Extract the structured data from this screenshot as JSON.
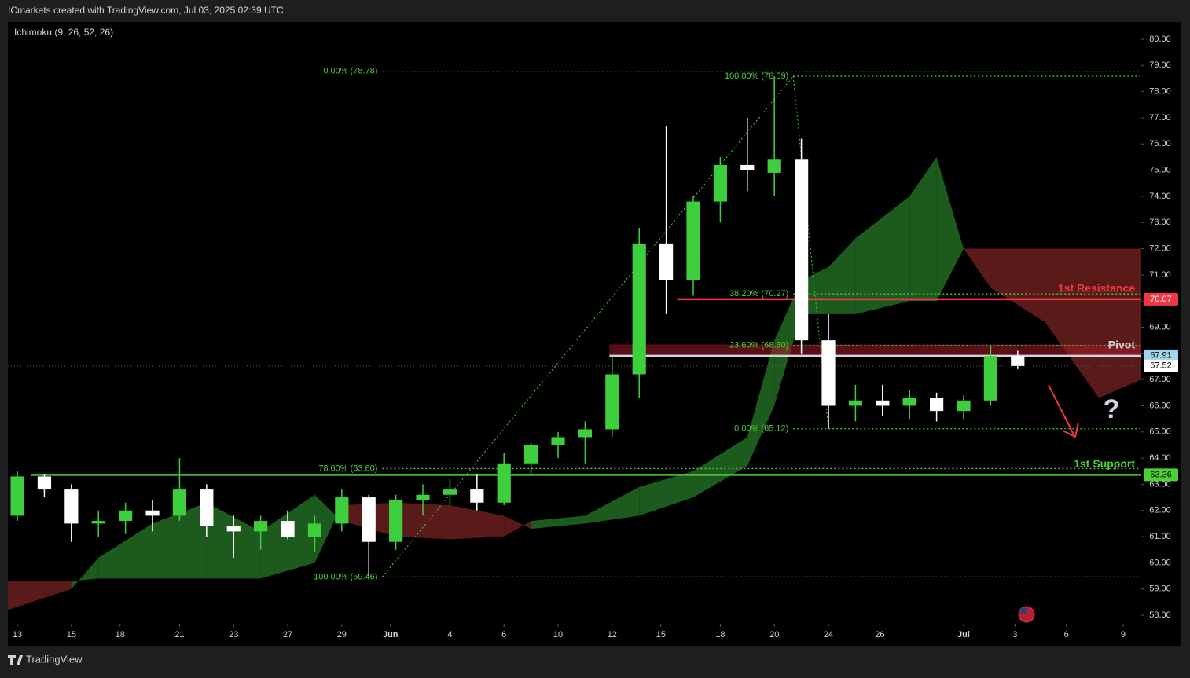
{
  "header": {
    "title": "ICmarkets created with TradingView.com, Jul 03, 2025 02:39 UTC",
    "indicator": "Ichimoku (9, 26, 52, 26)",
    "footer": "TradingView"
  },
  "chart_data": {
    "type": "candlestick",
    "up_color": "#3ecf3e",
    "down_color": "#ffffff",
    "xlim": [
      -0.35,
      41.57
    ],
    "ylim": [
      56.83,
      80.66
    ],
    "xticks": [
      {
        "value": 0,
        "label": "13"
      },
      {
        "value": 2,
        "label": "15"
      },
      {
        "value": 3.8,
        "label": "18"
      },
      {
        "value": 6.0,
        "label": "21"
      },
      {
        "value": 8.0,
        "label": "23"
      },
      {
        "value": 10.0,
        "label": "27"
      },
      {
        "value": 12.0,
        "label": "29"
      },
      {
        "value": 13.8,
        "label": "Jun"
      },
      {
        "value": 16.0,
        "label": "4"
      },
      {
        "value": 18.0,
        "label": "6"
      },
      {
        "value": 20.0,
        "label": "10"
      },
      {
        "value": 22.0,
        "label": "12"
      },
      {
        "value": 23.8,
        "label": "15"
      },
      {
        "value": 26.0,
        "label": "18"
      },
      {
        "value": 28.0,
        "label": "20"
      },
      {
        "value": 30.0,
        "label": "24"
      },
      {
        "value": 31.9,
        "label": "26"
      },
      {
        "value": 35.0,
        "label": "Jul"
      },
      {
        "value": 36.9,
        "label": "3"
      },
      {
        "value": 38.8,
        "label": "6"
      },
      {
        "value": 40.9,
        "label": "9"
      }
    ],
    "yticks": [
      {
        "value": 58,
        "label": "58.00"
      },
      {
        "value": 59,
        "label": "59.00"
      },
      {
        "value": 60,
        "label": "60.00"
      },
      {
        "value": 61,
        "label": "61.00"
      },
      {
        "value": 62,
        "label": "62.00"
      },
      {
        "value": 63,
        "label": "63.00"
      },
      {
        "value": 64,
        "label": "64.00"
      },
      {
        "value": 65,
        "label": "65.00"
      },
      {
        "value": 66,
        "label": "66.00"
      },
      {
        "value": 67,
        "label": "67.00"
      },
      {
        "value": 68,
        "label": "68.00"
      },
      {
        "value": 69,
        "label": "69.00"
      },
      {
        "value": 70,
        "label": "70.00"
      },
      {
        "value": 71,
        "label": "71.00"
      },
      {
        "value": 72,
        "label": "72.00"
      },
      {
        "value": 73,
        "label": "73.00"
      },
      {
        "value": 74,
        "label": "74.00"
      },
      {
        "value": 75,
        "label": "75.00"
      },
      {
        "value": 76,
        "label": "76.00"
      },
      {
        "value": 77,
        "label": "77.00"
      },
      {
        "value": 78,
        "label": "78.00"
      },
      {
        "value": 79,
        "label": "79.00"
      },
      {
        "value": 80,
        "label": "80.00"
      }
    ],
    "candles": {
      "open": [
        61.8,
        63.3,
        62.8,
        61.5,
        61.6,
        62.0,
        61.8,
        62.8,
        61.4,
        61.2,
        61.6,
        61.0,
        61.5,
        62.5,
        60.8,
        62.4,
        62.6,
        62.8,
        62.3,
        63.8,
        64.5,
        64.8,
        65.1,
        67.2,
        72.2,
        70.8,
        73.8,
        75.2,
        74.9,
        75.4,
        68.5,
        66.0,
        66.2,
        66.0,
        66.3,
        65.8,
        66.2,
        67.9
      ],
      "high": [
        63.5,
        63.4,
        63.0,
        62.0,
        62.3,
        62.4,
        64.0,
        63.0,
        61.8,
        61.8,
        62.0,
        61.8,
        62.8,
        62.6,
        62.6,
        63.0,
        63.2,
        63.4,
        64.2,
        64.6,
        65.0,
        65.4,
        67.9,
        72.8,
        76.7,
        74.0,
        75.5,
        77.0,
        78.59,
        76.2,
        69.5,
        66.8,
        66.8,
        66.6,
        66.5,
        66.4,
        68.3,
        68.1
      ],
      "low": [
        61.6,
        62.5,
        60.8,
        61.0,
        61.1,
        61.2,
        61.6,
        61.0,
        60.2,
        60.5,
        60.9,
        60.4,
        61.2,
        59.5,
        60.5,
        61.8,
        62.2,
        62.0,
        62.2,
        63.4,
        64.0,
        63.8,
        64.8,
        66.3,
        69.5,
        70.2,
        73.0,
        74.2,
        74.0,
        68.0,
        65.12,
        65.4,
        65.6,
        65.5,
        65.4,
        65.5,
        66.0,
        67.4
      ],
      "close": [
        63.3,
        62.8,
        61.5,
        61.6,
        62.0,
        61.8,
        62.8,
        61.4,
        61.2,
        61.6,
        61.0,
        61.5,
        62.5,
        60.8,
        62.4,
        62.6,
        62.8,
        62.3,
        63.8,
        64.5,
        64.8,
        65.1,
        67.2,
        72.2,
        70.8,
        73.8,
        75.2,
        75.0,
        75.4,
        68.5,
        66.0,
        66.2,
        66.0,
        66.3,
        65.8,
        66.2,
        67.9,
        67.52
      ]
    },
    "cloud": {
      "bull_color": "#1d5a1d",
      "bear_color": "#5a1a1a",
      "x": [
        -0.35,
        2,
        3,
        5,
        7,
        9,
        11,
        12,
        14,
        16,
        18,
        19,
        21,
        23,
        25,
        27,
        28,
        29,
        30,
        31,
        33,
        34,
        35,
        36,
        38,
        40,
        41.57
      ],
      "span_a": [
        58.2,
        59.0,
        60.2,
        61.5,
        62.3,
        61.2,
        62.6,
        61.6,
        61.0,
        60.9,
        61.0,
        61.6,
        61.8,
        62.9,
        63.5,
        64.8,
        68.5,
        70.8,
        71.3,
        72.4,
        74.0,
        75.5,
        72.0,
        70.5,
        69.2,
        66.3,
        67.0
      ],
      "span_b": [
        59.3,
        59.3,
        59.4,
        59.4,
        59.4,
        59.4,
        60.0,
        62.2,
        62.3,
        62.2,
        61.8,
        61.3,
        61.5,
        61.8,
        62.5,
        63.7,
        66.0,
        69.5,
        69.5,
        69.5,
        70.0,
        70.0,
        72.0,
        72.0,
        72.0,
        72.0,
        72.0
      ]
    },
    "fib_color": "#4cd137",
    "fib_levels": [
      {
        "label": "0.00% (78.78)",
        "value": 78.78,
        "start": 13.5
      },
      {
        "label": "100.00% (78.59)",
        "value": 78.59,
        "start": 28.7
      },
      {
        "label": "38.20% (70.27)",
        "value": 70.27,
        "start": 28.7
      },
      {
        "label": "23.60% (68.30)",
        "value": 68.3,
        "start": 28.7
      },
      {
        "label": "0.00% (65.12)",
        "value": 65.12,
        "start": 28.7
      },
      {
        "label": "78.60% (63.60)",
        "value": 63.6,
        "start": 13.5
      },
      {
        "label": "100.00% (59.46)",
        "value": 59.46,
        "start": 13.5
      }
    ],
    "key_levels": [
      {
        "label": "1st Resistance",
        "value": 70.07,
        "color": "#f23645",
        "start": 24.4
      },
      {
        "label": "Pivot",
        "value": 67.91,
        "color": "#d1d4dc",
        "start": 21.9
      },
      {
        "label": "1st Support",
        "value": 63.36,
        "color": "#4cd137",
        "start": 0.5
      }
    ],
    "pivot_zone": [
      67.91,
      68.34
    ],
    "last_price": 67.52
  }
}
